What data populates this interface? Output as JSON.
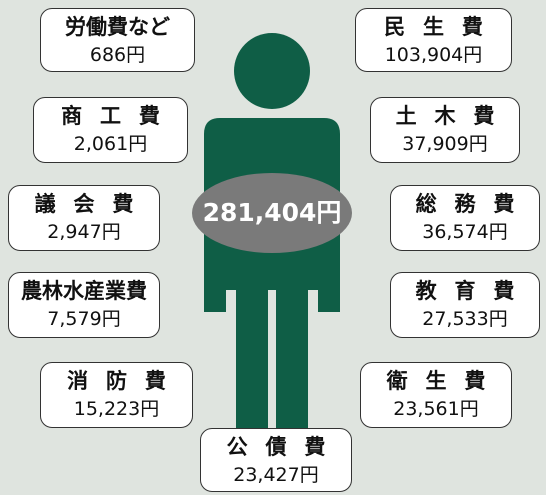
{
  "total": "281,404円",
  "items": [
    {
      "label": "労働費など",
      "amount": "686円"
    },
    {
      "label": "民生費",
      "amount": "103,904円"
    },
    {
      "label": "商工費",
      "amount": "2,061円"
    },
    {
      "label": "土木費",
      "amount": "37,909円"
    },
    {
      "label": "議会費",
      "amount": "2,947円"
    },
    {
      "label": "総務費",
      "amount": "36,574円"
    },
    {
      "label": "農林水産業費",
      "amount": "7,579円"
    },
    {
      "label": "教育費",
      "amount": "27,533円"
    },
    {
      "label": "消防費",
      "amount": "15,223円"
    },
    {
      "label": "衛生費",
      "amount": "23,561円"
    },
    {
      "label": "公債費",
      "amount": "23,427円"
    }
  ]
}
